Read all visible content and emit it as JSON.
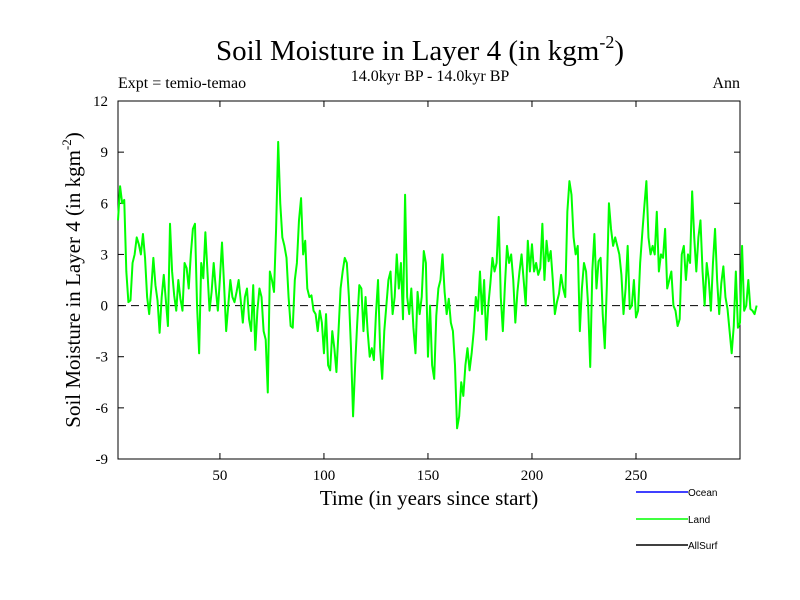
{
  "chart_data": {
    "type": "line",
    "title_main": "Soil Moisture in Layer 4 (in kgm",
    "title_sup": "-2",
    "title_close": ")",
    "subtitle": "14.0kyr BP - 14.0kyr BP",
    "expt_label": "Expt = temio-temao",
    "season_label": "Ann",
    "xlabel": "Time (in years since start)",
    "ylabel_main": "Soil Moisture in Layer 4 (in kgm",
    "ylabel_sup": "-2",
    "ylabel_close": ")",
    "xlim": [
      1,
      300
    ],
    "ylim": [
      -9,
      12
    ],
    "x_ticks": [
      50,
      100,
      150,
      200,
      250
    ],
    "y_ticks": [
      -9,
      -6,
      -3,
      0,
      3,
      6,
      9,
      12
    ],
    "zero_line": true,
    "legend": [
      {
        "name": "Ocean",
        "color": "#0000ff"
      },
      {
        "name": "Land",
        "color": "#00ff00"
      },
      {
        "name": "AllSurf",
        "color": "#000000"
      }
    ],
    "series": [
      {
        "name": "Land",
        "color": "#00ff00",
        "x_start": 1,
        "values": [
          5.0,
          7.0,
          6.0,
          6.2,
          2.0,
          0.2,
          0.3,
          2.5,
          3.0,
          4.0,
          3.6,
          3.0,
          4.2,
          2.8,
          0.5,
          -0.5,
          1.0,
          2.8,
          1.2,
          0.3,
          -1.6,
          0.5,
          1.8,
          0.3,
          -1.2,
          4.8,
          2.0,
          0.6,
          -0.3,
          1.5,
          0.4,
          -0.3,
          2.5,
          2.2,
          1.0,
          3.0,
          4.5,
          4.8,
          0.0,
          -2.8,
          2.5,
          1.6,
          4.3,
          2.0,
          -0.3,
          0.8,
          2.5,
          1.0,
          -0.3,
          1.6,
          3.7,
          1.2,
          -1.5,
          0.0,
          1.5,
          0.5,
          0.2,
          0.8,
          1.5,
          0.3,
          -1.0,
          0.5,
          1.0,
          -0.8,
          -1.5,
          1.2,
          -2.6,
          -0.3,
          1.0,
          0.5,
          -1.5,
          -2.0,
          -5.1,
          2.0,
          1.5,
          0.8,
          4.5,
          9.6,
          6.0,
          4.0,
          3.5,
          2.8,
          0.5,
          -1.2,
          -1.3,
          1.5,
          2.5,
          5.0,
          6.3,
          3.0,
          3.8,
          1.0,
          0.5,
          0.6,
          -0.3,
          -0.5,
          -1.5,
          -0.3,
          -1.0,
          -2.8,
          -0.5,
          -3.5,
          -3.8,
          -1.5,
          -2.5,
          -3.9,
          -1.5,
          1.0,
          2.0,
          2.8,
          2.5,
          0.5,
          -2.5,
          -6.5,
          -3.5,
          -1.0,
          1.2,
          1.0,
          -1.5,
          0.5,
          -1.5,
          -3.0,
          -2.5,
          -3.2,
          -0.5,
          1.5,
          -2.5,
          -4.3,
          -1.5,
          0.0,
          1.5,
          2.0,
          -0.5,
          0.5,
          3.0,
          1.0,
          2.5,
          -0.8,
          6.5,
          0.5,
          -0.5,
          1.0,
          -1.3,
          -2.8,
          0.8,
          -0.5,
          0.5,
          3.2,
          2.5,
          -3.0,
          0.0,
          -3.5,
          -4.3,
          -0.6,
          1.0,
          1.5,
          3.0,
          0.8,
          -0.5,
          0.4,
          -1.0,
          -1.5,
          -3.5,
          -7.2,
          -6.5,
          -4.5,
          -5.3,
          -3.5,
          -2.5,
          -3.8,
          -2.8,
          -1.5,
          0.5,
          -0.3,
          2.0,
          -0.5,
          1.5,
          -2.0,
          0.0,
          1.3,
          2.8,
          2.0,
          2.5,
          5.2,
          0.5,
          -1.5,
          1.2,
          3.5,
          2.5,
          3.0,
          1.5,
          -1.0,
          0.8,
          2.0,
          3.0,
          1.5,
          0.0,
          3.8,
          2.0,
          3.6,
          2.0,
          2.5,
          1.8,
          2.2,
          4.8,
          1.5,
          3.8,
          2.6,
          3.2,
          1.5,
          -0.5,
          0.2,
          0.7,
          1.8,
          1.0,
          0.5,
          5.5,
          7.3,
          6.5,
          4.0,
          3.0,
          3.5,
          -1.5,
          1.0,
          2.5,
          2.0,
          0.0,
          -3.6,
          2.0,
          4.2,
          1.0,
          2.6,
          2.8,
          -0.5,
          -2.5,
          1.2,
          6.0,
          4.5,
          3.5,
          4.0,
          3.5,
          3.0,
          1.8,
          -0.5,
          1.0,
          3.5,
          -0.2,
          0.0,
          1.5,
          -0.7,
          -0.3,
          2.5,
          4.2,
          5.8,
          7.3,
          4.0,
          3.0,
          3.5,
          3.0,
          5.5,
          2.0,
          3.0,
          2.8,
          4.5,
          1.0,
          1.5,
          2.0,
          0.0,
          -0.3,
          -1.2,
          -0.8,
          3.0,
          3.5,
          1.5,
          3.0,
          2.5,
          6.7,
          4.0,
          2.0,
          4.0,
          5.0,
          2.0,
          0.0,
          2.5,
          1.5,
          -0.3,
          2.5,
          4.5,
          1.5,
          -0.5,
          1.3,
          2.3,
          0.5,
          -0.2,
          -1.5,
          -2.8,
          -1.2,
          2.0,
          -1.3,
          -1.0,
          3.5,
          -0.3,
          0.0,
          1.5,
          -0.2,
          -0.3,
          -0.5,
          0.0
        ]
      }
    ]
  }
}
